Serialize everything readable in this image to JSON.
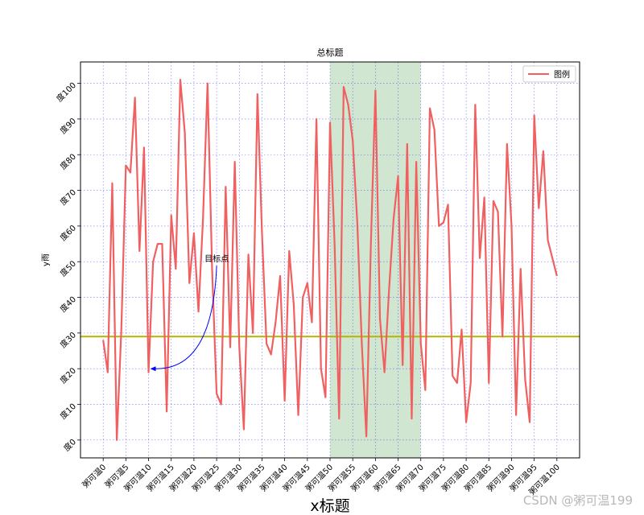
{
  "chart_data": {
    "type": "line",
    "title": "总标题",
    "xlabel": "x标题",
    "ylabel": "y雨",
    "x": [
      0,
      1,
      2,
      3,
      4,
      5,
      6,
      7,
      8,
      9,
      10,
      11,
      12,
      13,
      14,
      15,
      16,
      17,
      18,
      19,
      20,
      21,
      22,
      23,
      24,
      25,
      26,
      27,
      28,
      29,
      30,
      31,
      32,
      33,
      34,
      35,
      36,
      37,
      38,
      39,
      40,
      41,
      42,
      43,
      44,
      45,
      46,
      47,
      48,
      49,
      50,
      51,
      52,
      53,
      54,
      55,
      56,
      57,
      58,
      59,
      60,
      61,
      62,
      63,
      64,
      65,
      66,
      67,
      68,
      69,
      70,
      71,
      72,
      73,
      74,
      75,
      76,
      77,
      78,
      79,
      80,
      81,
      82,
      83,
      84,
      85,
      86,
      87,
      88,
      89,
      90,
      91,
      92,
      93,
      94,
      95,
      96,
      97,
      98,
      99,
      100
    ],
    "series": [
      {
        "name": "图例",
        "color": "#f06060",
        "values": [
          28,
          19,
          72,
          0,
          31,
          77,
          75,
          96,
          53,
          82,
          19,
          50,
          55,
          55,
          8,
          63,
          48,
          101,
          86,
          44,
          58,
          36,
          62,
          100,
          48,
          13,
          10,
          71,
          26,
          78,
          26,
          3,
          52,
          30,
          97,
          58,
          27,
          24,
          33,
          46,
          11,
          53,
          38,
          7,
          40,
          44,
          33,
          90,
          20,
          12,
          89,
          55,
          6,
          99,
          94,
          84,
          61,
          27,
          1,
          55,
          98,
          34,
          19,
          42,
          62,
          74,
          21,
          83,
          6,
          78,
          27,
          14,
          93,
          87,
          60,
          61,
          66,
          18,
          16,
          31,
          5,
          16,
          94,
          51,
          68,
          16,
          67,
          64,
          29,
          83,
          60,
          7,
          48,
          17,
          5,
          91,
          65,
          81,
          56,
          51,
          46
        ]
      }
    ],
    "xticks": [
      "粥可温0",
      "粥可温5",
      "粥可温10",
      "粥可温15",
      "粥可温20",
      "粥可温25",
      "粥可温30",
      "粥可温35",
      "粥可温40",
      "粥可温45",
      "粥可温50",
      "粥可温55",
      "粥可温60",
      "粥可温65",
      "粥可温70",
      "粥可温75",
      "粥可温80",
      "粥可温85",
      "粥可温90",
      "粥可温95",
      "粥可温100"
    ],
    "xtick_values": [
      0,
      5,
      10,
      15,
      20,
      25,
      30,
      35,
      40,
      45,
      50,
      55,
      60,
      65,
      70,
      75,
      80,
      85,
      90,
      95,
      100
    ],
    "yticks": [
      "度0",
      "度10",
      "度20",
      "度30",
      "度40",
      "度50",
      "度60",
      "度70",
      "度80",
      "度90",
      "度100"
    ],
    "ytick_values": [
      0,
      10,
      20,
      30,
      40,
      50,
      60,
      70,
      80,
      90,
      100
    ],
    "xlim": [
      -5,
      105
    ],
    "ylim": [
      -5,
      106
    ],
    "grid": true,
    "grid_color": "#0000ff",
    "hline": {
      "y": 29,
      "color": "#b5b500"
    },
    "span": {
      "x0": 50,
      "x1": 70,
      "color": "#2e8b2e"
    },
    "annotation": {
      "text": "目标点",
      "xy": [
        10,
        20
      ],
      "xytext": [
        25,
        50
      ],
      "arrow_color": "#0000ff"
    },
    "legend": {
      "label": "图例",
      "loc": "upper right"
    }
  },
  "watermark": "CSDN @粥可温199"
}
